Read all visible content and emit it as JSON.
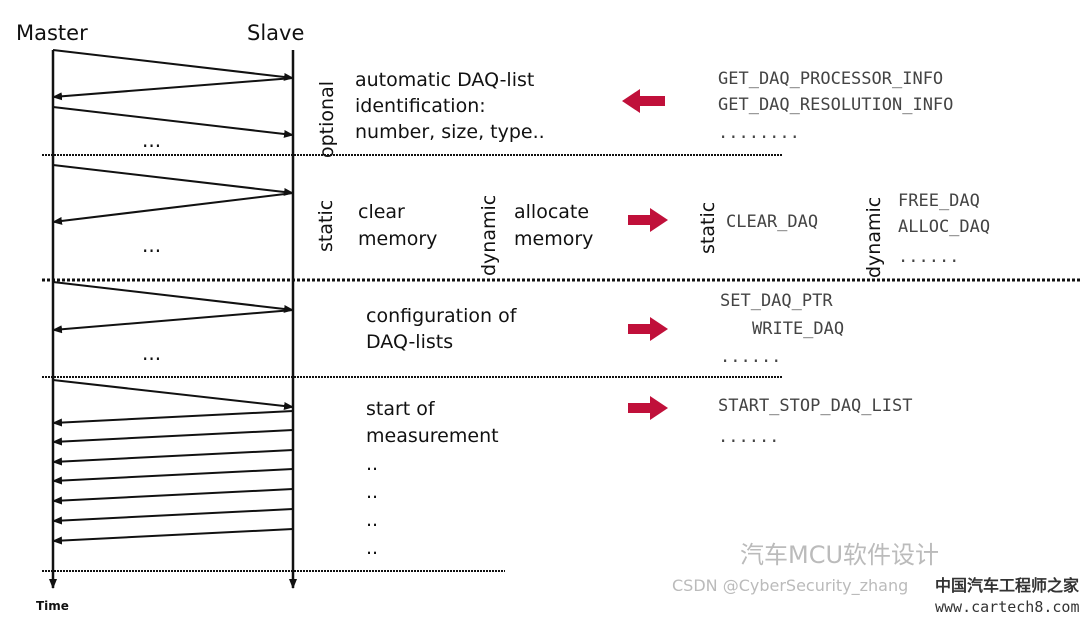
{
  "headers": {
    "master": "Master",
    "slave": "Slave",
    "time": "Time"
  },
  "ellipsis": "...",
  "sections": [
    {
      "side_label": "optional",
      "description": [
        "automatic DAQ-list",
        "identification:",
        "number, size, type.."
      ],
      "arrow_direction": "left",
      "commands": [
        "GET_DAQ_PROCESSOR_INFO",
        "GET_DAQ_RESOLUTION_INFO",
        "........"
      ]
    },
    {
      "static_label": "static",
      "static_description": [
        "clear",
        "memory"
      ],
      "dynamic_label": "dynamic",
      "dynamic_description": [
        "allocate",
        "memory"
      ],
      "arrow_direction": "right",
      "static_commands": [
        "CLEAR_DAQ"
      ],
      "dynamic_commands": [
        "FREE_DAQ",
        "ALLOC_DAQ",
        "......"
      ]
    },
    {
      "description": [
        "configuration of",
        "DAQ-lists"
      ],
      "arrow_direction": "right",
      "commands": [
        "SET_DAQ_PTR",
        "WRITE_DAQ",
        "......"
      ]
    },
    {
      "description": [
        "start of",
        "measurement",
        "..",
        "..",
        "..",
        ".."
      ],
      "arrow_direction": "right",
      "commands": [
        "START_STOP_DAQ_LIST",
        "......"
      ]
    }
  ],
  "colors": {
    "arrow_accent": "#c0103a",
    "line": "#111111"
  },
  "watermarks": [
    "汽车MCU软件设计",
    "CSDN @CyberSecurity_zhang",
    "中国汽车工程师之家",
    "www.cartech8.com"
  ]
}
